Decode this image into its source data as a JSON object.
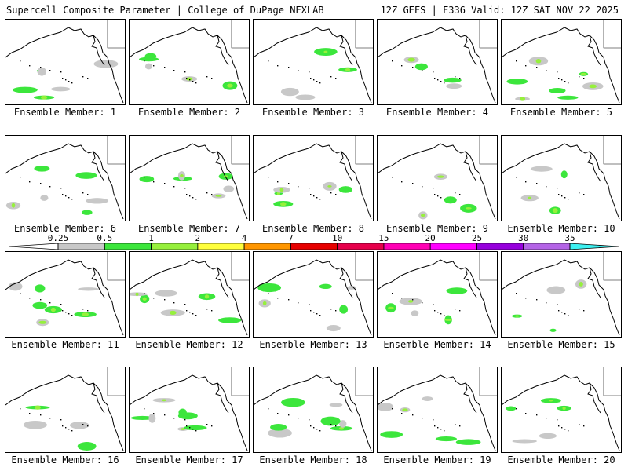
{
  "header": {
    "title": "Supercell Composite Parameter | College of DuPage NEXLAB",
    "run_info": "12Z GEFS | F336 Valid: 12Z SAT NOV 22 2025"
  },
  "member_label_prefix": "Ensemble Member: ",
  "members": [
    1,
    2,
    3,
    4,
    5,
    6,
    7,
    8,
    9,
    10,
    11,
    12,
    13,
    14,
    15,
    16,
    17,
    18,
    19,
    20
  ],
  "colorbar": {
    "ticks": [
      "0.25",
      "0.5",
      "1",
      "2",
      "4",
      "7",
      "10",
      "15",
      "20",
      "25",
      "30",
      "35"
    ],
    "colors": [
      "#c8c8c8",
      "#3ce63c",
      "#96f03c",
      "#ffff3c",
      "#ff9600",
      "#e60000",
      "#e6004b",
      "#ff00b4",
      "#ff00ff",
      "#9600dc",
      "#b464e6",
      "#3cf0f0"
    ]
  }
}
